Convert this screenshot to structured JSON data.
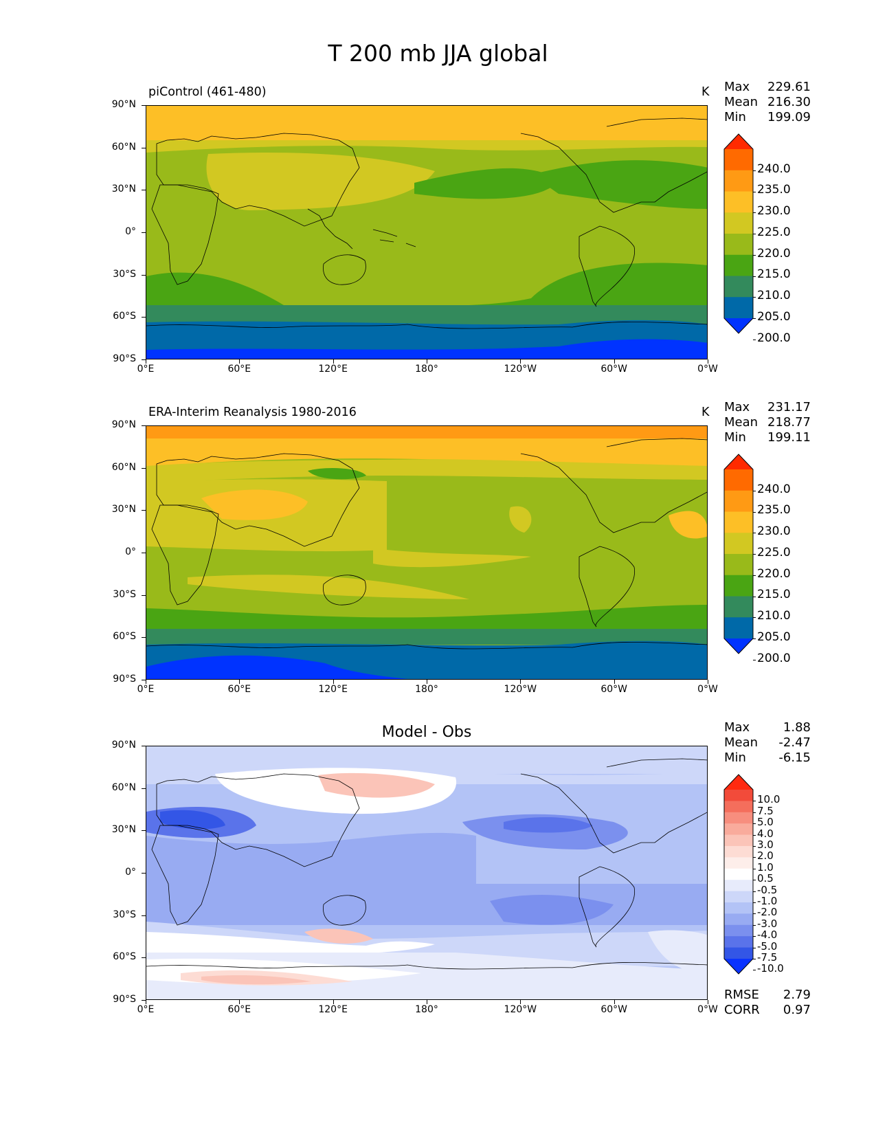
{
  "figure": {
    "title": "T 200 mb JJA global"
  },
  "axes": {
    "lat_labels": [
      "90°N",
      "60°N",
      "30°N",
      "0°",
      "30°S",
      "60°S",
      "90°S"
    ],
    "lon_labels": [
      "0°E",
      "60°E",
      "120°E",
      "180°",
      "120°W",
      "60°W",
      "0°W"
    ]
  },
  "panels": [
    {
      "title": "piControl (461-480)",
      "units": "K",
      "stats": [
        {
          "label": "Max",
          "value": "229.61"
        },
        {
          "label": "Mean",
          "value": "216.30"
        },
        {
          "label": "Min",
          "value": "199.09"
        }
      ],
      "colorbar": {
        "labels": [
          "240.0",
          "235.0",
          "230.0",
          "225.0",
          "220.0",
          "215.0",
          "210.0",
          "205.0",
          "200.0"
        ],
        "colors": [
          "#ff2a00",
          "#ff6a00",
          "#ff9a14",
          "#fdbf26",
          "#d2c822",
          "#99ba1a",
          "#4aa513",
          "#338a5c",
          "#0069a8",
          "#0033ff"
        ]
      }
    },
    {
      "title": "ERA-Interim Reanalysis 1980-2016",
      "units": "K",
      "stats": [
        {
          "label": "Max",
          "value": "231.17"
        },
        {
          "label": "Mean",
          "value": "218.77"
        },
        {
          "label": "Min",
          "value": "199.11"
        }
      ],
      "colorbar": {
        "labels": [
          "240.0",
          "235.0",
          "230.0",
          "225.0",
          "220.0",
          "215.0",
          "210.0",
          "205.0",
          "200.0"
        ],
        "colors": [
          "#ff2a00",
          "#ff6a00",
          "#ff9a14",
          "#fdbf26",
          "#d2c822",
          "#99ba1a",
          "#4aa513",
          "#338a5c",
          "#0069a8",
          "#0033ff"
        ]
      }
    },
    {
      "title": "Model - Obs",
      "stats": [
        {
          "label": "Max",
          "value": "1.88"
        },
        {
          "label": "Mean",
          "value": "-2.47"
        },
        {
          "label": "Min",
          "value": "-6.15"
        }
      ],
      "metrics": [
        {
          "label": "RMSE",
          "value": "2.79"
        },
        {
          "label": "CORR",
          "value": "0.97"
        }
      ],
      "colorbar": {
        "labels": [
          "10.0",
          "7.5",
          "5.0",
          "4.0",
          "3.0",
          "2.0",
          "1.0",
          "0.5",
          "-0.5",
          "-1.0",
          "-2.0",
          "-3.0",
          "-4.0",
          "-5.0",
          "-7.5",
          "-10.0"
        ],
        "colors": [
          "#ff2a10",
          "#f24b3a",
          "#f46e5c",
          "#f78e7e",
          "#f9ab9c",
          "#fbc4b8",
          "#fddcd4",
          "#fdeeea",
          "#ffffff",
          "#e7ebfb",
          "#cdd7f9",
          "#b3c3f6",
          "#98abf2",
          "#7b90ee",
          "#5a73ea",
          "#3356e6",
          "#0a33ff"
        ]
      }
    }
  ]
}
